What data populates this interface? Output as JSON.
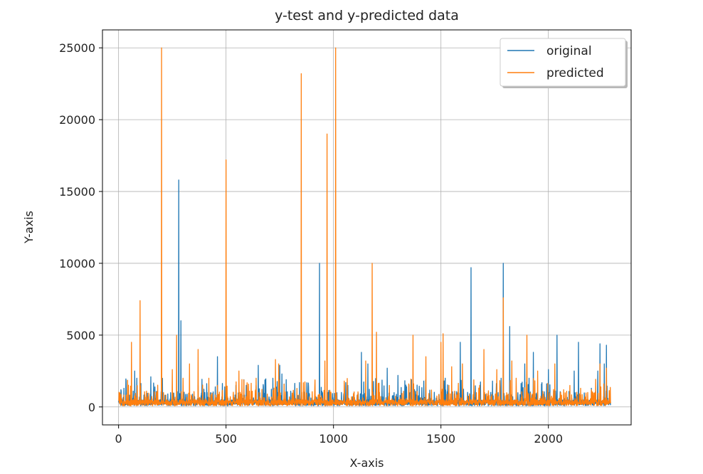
{
  "chart_data": {
    "type": "line",
    "title": "y-test and y-predicted data",
    "xlabel": "X-axis",
    "ylabel": "Y-axis",
    "xlim": [
      -75,
      2385
    ],
    "ylim": [
      -1250,
      26250
    ],
    "xticks": [
      0,
      500,
      1000,
      1500,
      2000
    ],
    "yticks": [
      0,
      5000,
      10000,
      15000,
      20000,
      25000
    ],
    "grid": true,
    "legend_position": "upper-right",
    "series": [
      {
        "name": "original",
        "color": "#1f77b4",
        "spikes": [
          [
            12,
            1100
          ],
          [
            25,
            1300
          ],
          [
            60,
            1000
          ],
          [
            75,
            2500
          ],
          [
            85,
            2000
          ],
          [
            150,
            2100
          ],
          [
            280,
            15800
          ],
          [
            290,
            6000
          ],
          [
            300,
            1300
          ],
          [
            370,
            1500
          ],
          [
            450,
            1400
          ],
          [
            460,
            3500
          ],
          [
            500,
            600
          ],
          [
            640,
            1500
          ],
          [
            650,
            2900
          ],
          [
            700,
            700
          ],
          [
            750,
            2900
          ],
          [
            760,
            2300
          ],
          [
            770,
            1600
          ],
          [
            780,
            1900
          ],
          [
            935,
            10000
          ],
          [
            1130,
            3800
          ],
          [
            1160,
            3000
          ],
          [
            1250,
            2700
          ],
          [
            1300,
            2200
          ],
          [
            1340,
            1400
          ],
          [
            1420,
            1800
          ],
          [
            1500,
            2500
          ],
          [
            1520,
            2000
          ],
          [
            1590,
            4500
          ],
          [
            1640,
            9700
          ],
          [
            1700,
            1400
          ],
          [
            1740,
            1800
          ],
          [
            1780,
            2000
          ],
          [
            1790,
            10000
          ],
          [
            1820,
            5600
          ],
          [
            1890,
            3000
          ],
          [
            1910,
            2000
          ],
          [
            1930,
            3800
          ],
          [
            2000,
            2600
          ],
          [
            2040,
            5000
          ],
          [
            2120,
            2500
          ],
          [
            2140,
            4500
          ],
          [
            2200,
            1300
          ],
          [
            2230,
            2500
          ],
          [
            2240,
            4400
          ],
          [
            2260,
            3000
          ],
          [
            2270,
            4300
          ]
        ]
      },
      {
        "name": "predicted",
        "color": "#ff7f0e",
        "spikes": [
          [
            5,
            500
          ],
          [
            60,
            4500
          ],
          [
            100,
            7400
          ],
          [
            130,
            1100
          ],
          [
            200,
            25000
          ],
          [
            250,
            2600
          ],
          [
            270,
            5000
          ],
          [
            300,
            2000
          ],
          [
            330,
            3000
          ],
          [
            370,
            4000
          ],
          [
            420,
            2000
          ],
          [
            460,
            1500
          ],
          [
            500,
            17200
          ],
          [
            560,
            2500
          ],
          [
            640,
            2000
          ],
          [
            730,
            3300
          ],
          [
            745,
            3000
          ],
          [
            850,
            23200
          ],
          [
            960,
            3200
          ],
          [
            970,
            19000
          ],
          [
            1010,
            25000
          ],
          [
            1050,
            1800
          ],
          [
            1150,
            3200
          ],
          [
            1180,
            10000
          ],
          [
            1200,
            5200
          ],
          [
            1260,
            1500
          ],
          [
            1370,
            5000
          ],
          [
            1430,
            3500
          ],
          [
            1500,
            4500
          ],
          [
            1510,
            5100
          ],
          [
            1550,
            2800
          ],
          [
            1600,
            3000
          ],
          [
            1680,
            1500
          ],
          [
            1700,
            4000
          ],
          [
            1760,
            2600
          ],
          [
            1790,
            7600
          ],
          [
            1830,
            3200
          ],
          [
            1850,
            2000
          ],
          [
            1900,
            5000
          ],
          [
            1950,
            2500
          ],
          [
            2030,
            3000
          ],
          [
            2100,
            1500
          ],
          [
            2150,
            1300
          ],
          [
            2200,
            1200
          ],
          [
            2240,
            3000
          ],
          [
            2270,
            2700
          ],
          [
            2285,
            600
          ]
        ]
      }
    ]
  }
}
